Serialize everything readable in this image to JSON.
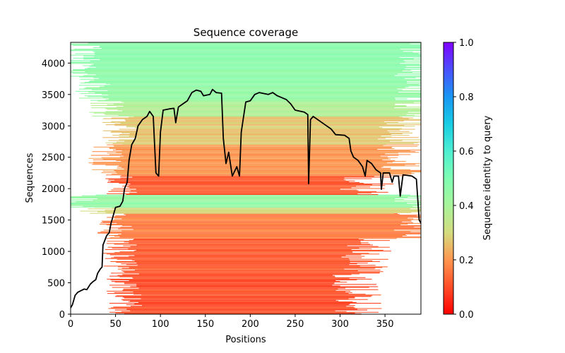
{
  "chart_data": {
    "type": "heatmap",
    "title": "Sequence coverage",
    "xlabel": "Positions",
    "ylabel": "Sequences",
    "xlim": [
      0,
      390
    ],
    "ylim": [
      0,
      4330
    ],
    "xticks": [
      0,
      50,
      100,
      150,
      200,
      250,
      300,
      350
    ],
    "yticks": [
      0,
      500,
      1000,
      1500,
      2000,
      2500,
      3000,
      3500,
      4000
    ],
    "grid": false,
    "colorbar": {
      "label": "Sequence identity to query",
      "range": [
        0,
        1
      ],
      "ticks": [
        "0.0",
        "0.2",
        "0.4",
        "0.6",
        "0.8",
        "1.0"
      ],
      "colormap": "rainbow_r"
    },
    "bands": [
      {
        "seq_from": 0,
        "seq_to": 700,
        "pos_from": 60,
        "pos_to": 320,
        "identity": 0.1
      },
      {
        "seq_from": 700,
        "seq_to": 1200,
        "pos_from": 55,
        "pos_to": 330,
        "identity": 0.12
      },
      {
        "seq_from": 1200,
        "seq_to": 1600,
        "pos_from": 50,
        "pos_to": 390,
        "identity": 0.17
      },
      {
        "seq_from": 1600,
        "seq_to": 1700,
        "pos_from": 30,
        "pos_to": 390,
        "identity": 0.3
      },
      {
        "seq_from": 1700,
        "seq_to": 1900,
        "pos_from": 10,
        "pos_to": 390,
        "identity": 0.45
      },
      {
        "seq_from": 1900,
        "seq_to": 2200,
        "pos_from": 55,
        "pos_to": 330,
        "identity": 0.12
      },
      {
        "seq_from": 2200,
        "seq_to": 2700,
        "pos_from": 40,
        "pos_to": 370,
        "identity": 0.2
      },
      {
        "seq_from": 2700,
        "seq_to": 3150,
        "pos_from": 55,
        "pos_to": 370,
        "identity": 0.27
      },
      {
        "seq_from": 3150,
        "seq_to": 3400,
        "pos_from": 40,
        "pos_to": 390,
        "identity": 0.38
      },
      {
        "seq_from": 3400,
        "seq_to": 3700,
        "pos_from": 25,
        "pos_to": 390,
        "identity": 0.45
      },
      {
        "seq_from": 3700,
        "seq_to": 4330,
        "pos_from": 15,
        "pos_to": 390,
        "identity": 0.47
      }
    ],
    "series": [
      {
        "name": "coverage",
        "color": "#000000",
        "x": [
          0,
          2,
          5,
          8,
          15,
          18,
          22,
          25,
          28,
          30,
          33,
          35,
          36,
          40,
          43,
          45,
          47,
          50,
          55,
          58,
          60,
          63,
          65,
          68,
          72,
          75,
          80,
          85,
          88,
          92,
          95,
          98,
          100,
          103,
          110,
          115,
          117,
          120,
          125,
          130,
          135,
          140,
          145,
          148,
          155,
          158,
          162,
          168,
          170,
          173,
          176,
          180,
          185,
          188,
          190,
          195,
          200,
          205,
          210,
          220,
          225,
          230,
          240,
          245,
          250,
          260,
          264,
          265,
          267,
          270,
          280,
          290,
          295,
          305,
          310,
          312,
          315,
          320,
          325,
          328,
          330,
          335,
          340,
          345,
          346,
          348,
          355,
          358,
          360,
          365,
          367,
          370,
          380,
          385,
          388,
          390,
          393,
          396
        ],
        "y": [
          100,
          150,
          300,
          350,
          400,
          390,
          480,
          520,
          550,
          650,
          720,
          750,
          1100,
          1250,
          1300,
          1450,
          1550,
          1700,
          1720,
          1800,
          2000,
          2100,
          2450,
          2700,
          2800,
          3000,
          3100,
          3150,
          3230,
          3150,
          2250,
          2200,
          2900,
          3250,
          3270,
          3280,
          3050,
          3300,
          3350,
          3400,
          3530,
          3570,
          3550,
          3480,
          3500,
          3580,
          3530,
          3520,
          2800,
          2400,
          2580,
          2200,
          2350,
          2200,
          2900,
          3380,
          3400,
          3500,
          3530,
          3500,
          3530,
          3480,
          3420,
          3350,
          3250,
          3220,
          3180,
          2080,
          3100,
          3150,
          3050,
          2950,
          2860,
          2850,
          2800,
          2600,
          2500,
          2450,
          2350,
          2200,
          2450,
          2400,
          2300,
          2250,
          1990,
          2250,
          2250,
          2100,
          2200,
          2200,
          1880,
          2220,
          2200,
          2150,
          1500,
          1450,
          1470,
          1340
        ]
      }
    ]
  }
}
